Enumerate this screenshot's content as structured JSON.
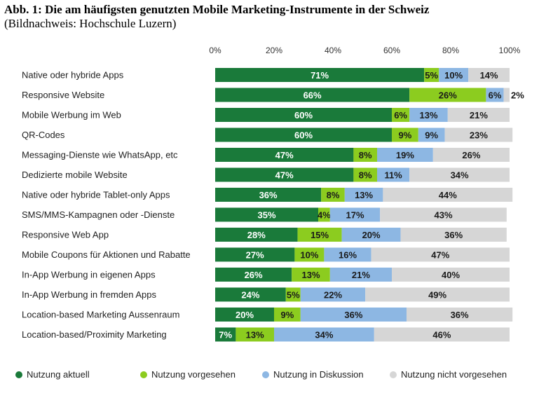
{
  "chart_data": {
    "type": "bar",
    "orientation": "horizontal",
    "stacked": true,
    "title": "Abb. 1: Die am häufigsten genutzten Mobile Marketing-Instrumente in der Schweiz",
    "subtitle": "(Bildnachweis: Hochschule Luzern)",
    "xlim": [
      0,
      100
    ],
    "x_ticks": [
      "0%",
      "20%",
      "40%",
      "60%",
      "80%",
      "100%"
    ],
    "x_tick_values": [
      0,
      20,
      40,
      60,
      80,
      100
    ],
    "legend_position": "bottom",
    "categories": [
      "Native oder hybride Apps",
      "Responsive Website",
      "Mobile Werbung im Web",
      "QR-Codes",
      "Messaging-Dienste wie WhatsApp, etc",
      "Dedizierte mobile Website",
      "Native oder hybride Tablet-only Apps",
      "SMS/MMS-Kampagnen oder -Dienste",
      "Responsive Web App",
      "Mobile Coupons für Aktionen und Rabatte",
      "In-App Werbung in eigenen Apps",
      "In-App Werbung in fremden Apps",
      "Location-based Marketing Aussenraum",
      "Location-based/Proximity Marketing"
    ],
    "series": [
      {
        "name": "Nutzung aktuell",
        "color": "#1a7a3a",
        "label_color": "#ffffff",
        "values": [
          71,
          66,
          60,
          60,
          47,
          47,
          36,
          35,
          28,
          27,
          26,
          24,
          20,
          7
        ]
      },
      {
        "name": "Nutzung vorgesehen",
        "color": "#8ccc1f",
        "label_color": "#1a1a1a",
        "values": [
          5,
          26,
          6,
          9,
          8,
          8,
          8,
          4,
          15,
          10,
          13,
          5,
          9,
          13
        ]
      },
      {
        "name": "Nutzung in Diskussion",
        "color": "#8db7e3",
        "label_color": "#1a1a1a",
        "values": [
          10,
          6,
          13,
          9,
          19,
          11,
          13,
          17,
          20,
          16,
          21,
          22,
          36,
          34
        ]
      },
      {
        "name": "Nutzung nicht vorgesehen",
        "color": "#d6d6d6",
        "label_color": "#1a1a1a",
        "values": [
          14,
          2,
          21,
          23,
          26,
          34,
          44,
          43,
          36,
          47,
          40,
          49,
          36,
          46
        ]
      }
    ]
  }
}
